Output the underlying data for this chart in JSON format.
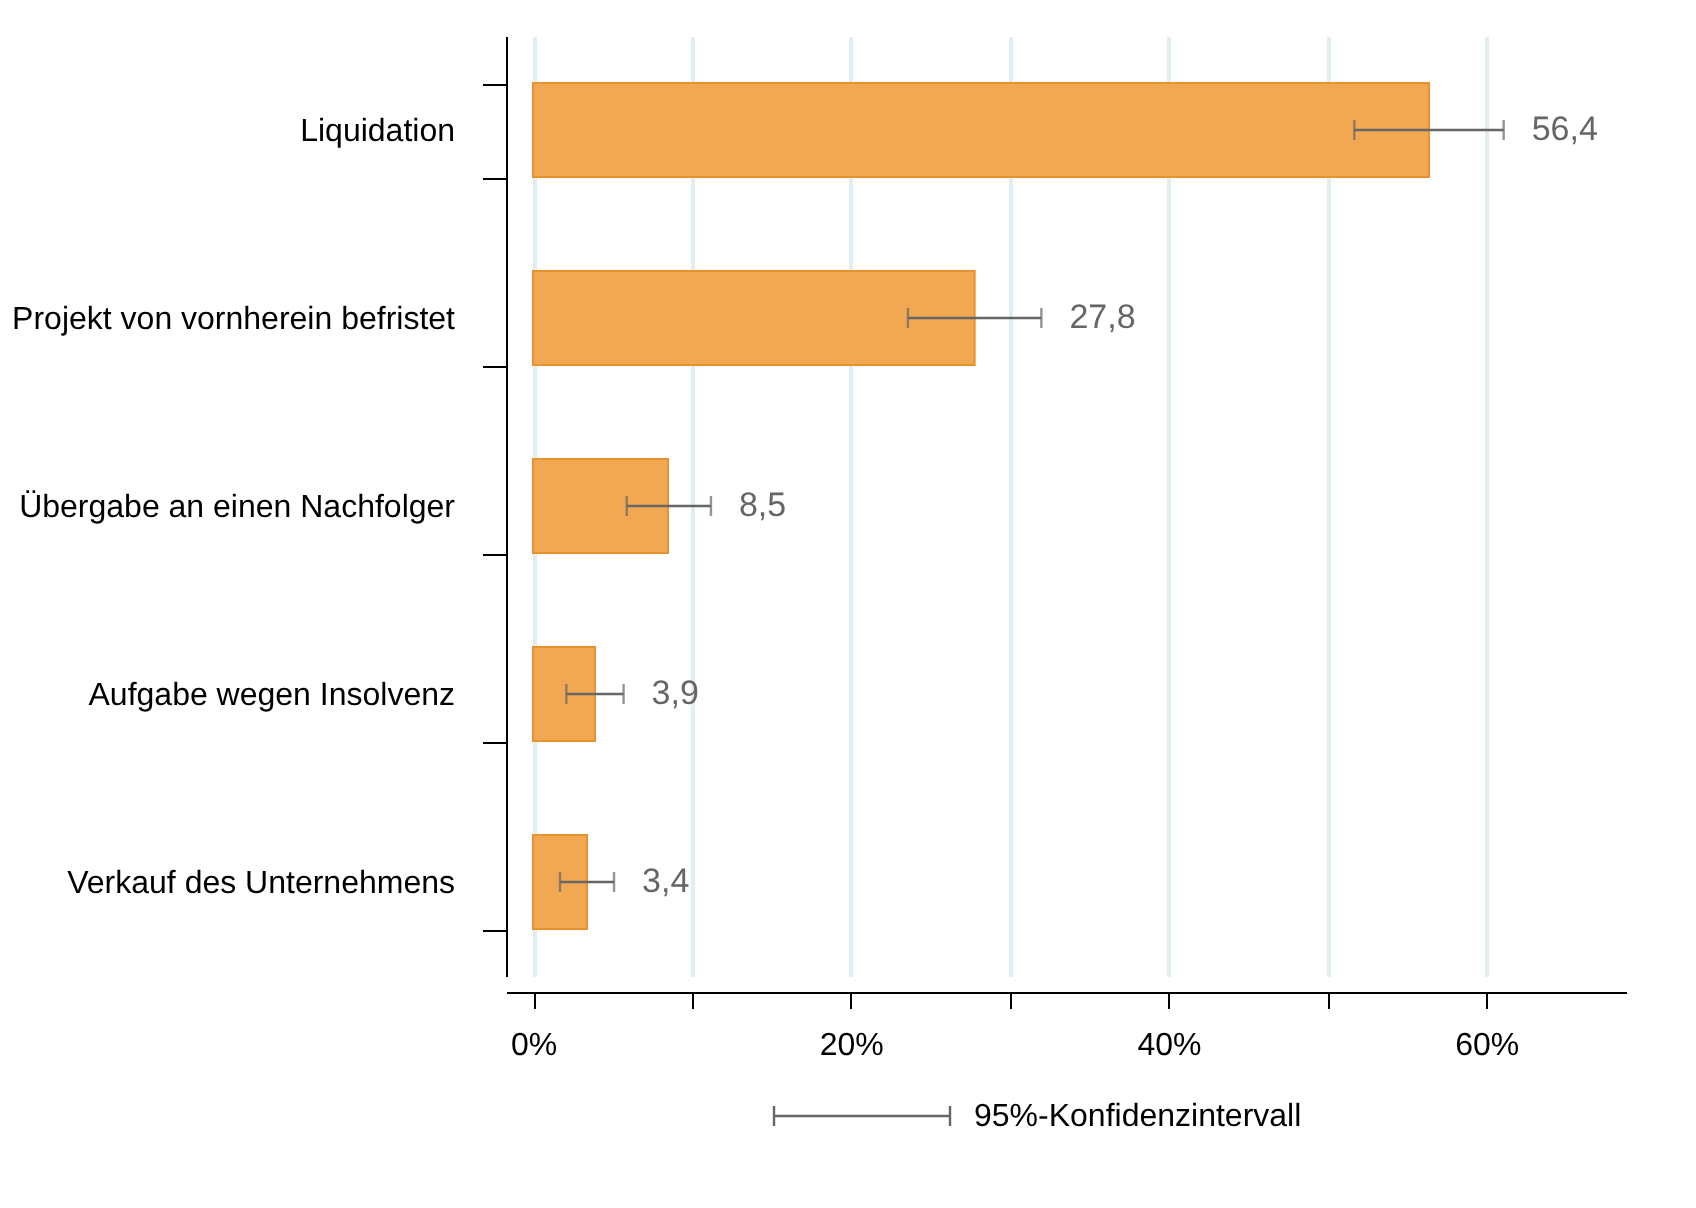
{
  "chart_data": {
    "type": "bar",
    "orientation": "horizontal",
    "categories": [
      "Liquidation",
      "Projekt von vornherein befristet",
      "Übergabe an einen Nachfolger",
      "Aufgabe wegen Insolvenz",
      "Verkauf des Unternehmens"
    ],
    "values": [
      56.4,
      27.8,
      8.5,
      3.9,
      3.4
    ],
    "errors": [
      [
        51.7,
        61.1
      ],
      [
        23.6,
        32.0
      ],
      [
        5.9,
        11.2
      ],
      [
        2.1,
        5.7
      ],
      [
        1.7,
        5.1
      ]
    ],
    "value_labels": [
      "56,4",
      "27,8",
      "8,5",
      "3,9",
      "3,4"
    ],
    "color": "#f2a852",
    "xlim": [
      -1.7,
      68.8
    ],
    "xticks": [
      {
        "value": 0,
        "label": "0%"
      },
      {
        "value": 10,
        "label": null
      },
      {
        "value": 20,
        "label": "20%"
      },
      {
        "value": 30,
        "label": null
      },
      {
        "value": 40,
        "label": "40%"
      },
      {
        "value": 50,
        "label": null
      },
      {
        "value": 60,
        "label": "60%"
      }
    ],
    "grid": "x",
    "annotations": [
      "95%-Konfidenzintervall"
    ]
  }
}
